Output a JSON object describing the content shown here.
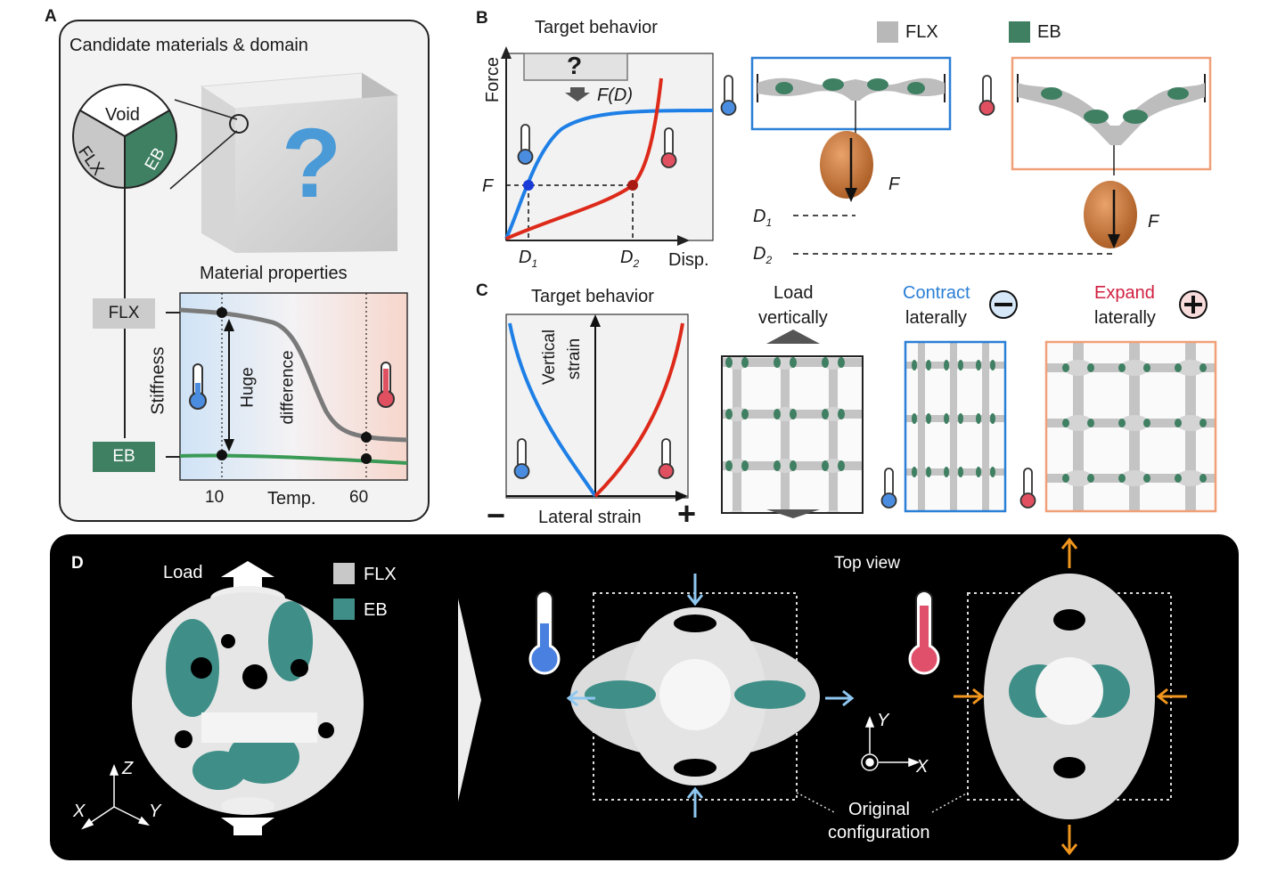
{
  "panels": {
    "a": "A",
    "b": "B",
    "c": "C",
    "d": "D"
  },
  "panel_a": {
    "title": "Candidate materials & domain",
    "pie_labels": {
      "void": "Void",
      "flx": "FLX",
      "eb": "EB"
    },
    "question_mark": "?",
    "properties_title": "Material properties",
    "flx_tag": "FLX",
    "eb_tag": "EB",
    "ylabel": "Stiffness",
    "huge_difference": [
      "Huge",
      "difference"
    ],
    "xticks": [
      "10",
      "60"
    ],
    "xlabel": "Temp.",
    "colors": {
      "flx": "#c8c8c8",
      "eb": "#3f7f62",
      "cold": "#4a8de0",
      "hot": "#e05060"
    }
  },
  "panel_b": {
    "title": "Target behavior",
    "ylabel": "Force",
    "xlabel": "Disp.",
    "question_mark": "?",
    "force_label": "F(D)",
    "f_label": "F",
    "d1": "D",
    "d1_sub": "1",
    "d2": "D",
    "d2_sub": "2",
    "legend": {
      "flx": "FLX",
      "eb": "EB"
    },
    "right_f_labels": [
      "F",
      "F"
    ],
    "right_d_labels": [
      {
        "main": "D",
        "sub": "1"
      },
      {
        "main": "D",
        "sub": "2"
      }
    ],
    "colors": {
      "cold_curve": "#1e7fe6",
      "hot_curve": "#dd2a1a",
      "cold_frame": "#2a7fd6",
      "hot_frame": "#f0a078"
    }
  },
  "panel_c": {
    "title": "Target behavior",
    "ylabel": [
      "Vertical",
      "strain"
    ],
    "xlabel": "Lateral strain",
    "minus": "−",
    "plus": "+",
    "load_label": [
      "Load",
      "vertically"
    ],
    "contract_label": [
      "Contract",
      "laterally"
    ],
    "expand_label": [
      "Expand",
      "laterally"
    ],
    "contract_color": "#2a7fd6",
    "expand_color": "#d02040"
  },
  "panel_d": {
    "load_label": "Load",
    "legend": {
      "flx": "FLX",
      "eb": "EB"
    },
    "top_view": "Top view",
    "axes_left": {
      "z": "Z",
      "x": "X",
      "y": "Y"
    },
    "axes_right": {
      "y": "Y",
      "x": "X"
    },
    "original": [
      "Original",
      "configuration"
    ],
    "colors": {
      "bg": "#000000",
      "eb": "#3f8f88",
      "cold_arrow": "#8fc7f0",
      "hot_arrow": "#f0961e"
    }
  }
}
